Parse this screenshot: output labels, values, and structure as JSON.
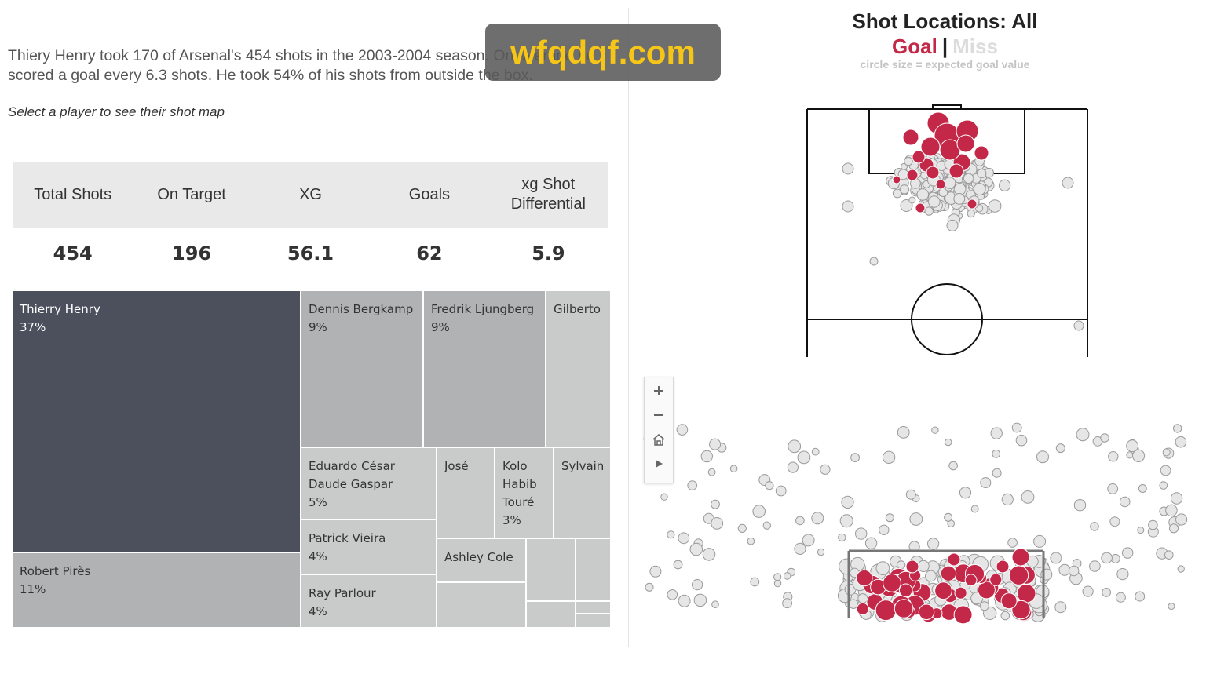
{
  "summary": "Thiery Henry took 170 of Arsenal's 454 shots in the 2003-2004 season. On average he scored a goal every 6.3 shots. He took 54% of his shots from outside the box.",
  "prompt": "Select a player to see their shot map",
  "watermark": "wfqdqf.com",
  "kpis": [
    {
      "label": "Total Shots",
      "value": "454"
    },
    {
      "label": "On Target",
      "value": "196"
    },
    {
      "label": "XG",
      "value": "56.1"
    },
    {
      "label": "Goals",
      "value": "62"
    },
    {
      "label": "xg Shot Differential",
      "value": "5.9"
    }
  ],
  "treemap": {
    "tiles": [
      {
        "name": "Thierry Henry",
        "pct": "37%",
        "selected": true
      },
      {
        "name": "Robert Pirès",
        "pct": "11%"
      },
      {
        "name": "Dennis Bergkamp",
        "pct": "9%"
      },
      {
        "name": "Fredrik Ljungberg",
        "pct": "9%"
      },
      {
        "name": "Gilberto",
        "pct": ""
      },
      {
        "name": "Eduardo César Daude Gaspar",
        "pct": "5%"
      },
      {
        "name": "José",
        "pct": ""
      },
      {
        "name": "Kolo Habib Touré",
        "pct": "3%"
      },
      {
        "name": "Sylvain",
        "pct": ""
      },
      {
        "name": "Patrick Vieira",
        "pct": "4%"
      },
      {
        "name": "Ashley Cole",
        "pct": ""
      },
      {
        "name": "Ray Parlour",
        "pct": "4%"
      }
    ],
    "colors": {
      "selected": "#4b505c",
      "primary": "#b0b2b3",
      "secondary": "#c9caca"
    }
  },
  "shot_map": {
    "title": "Shot Locations: All",
    "legend_goal": "Goal",
    "legend_separator": "|",
    "legend_miss": "Miss",
    "note": "circle size = expected goal value",
    "colors": {
      "goal": "#c42848",
      "miss": "#e6e6e6",
      "miss_stroke": "#9a9a9a"
    }
  },
  "zoom_controls": [
    "zoom-in",
    "zoom-out",
    "home",
    "play"
  ]
}
